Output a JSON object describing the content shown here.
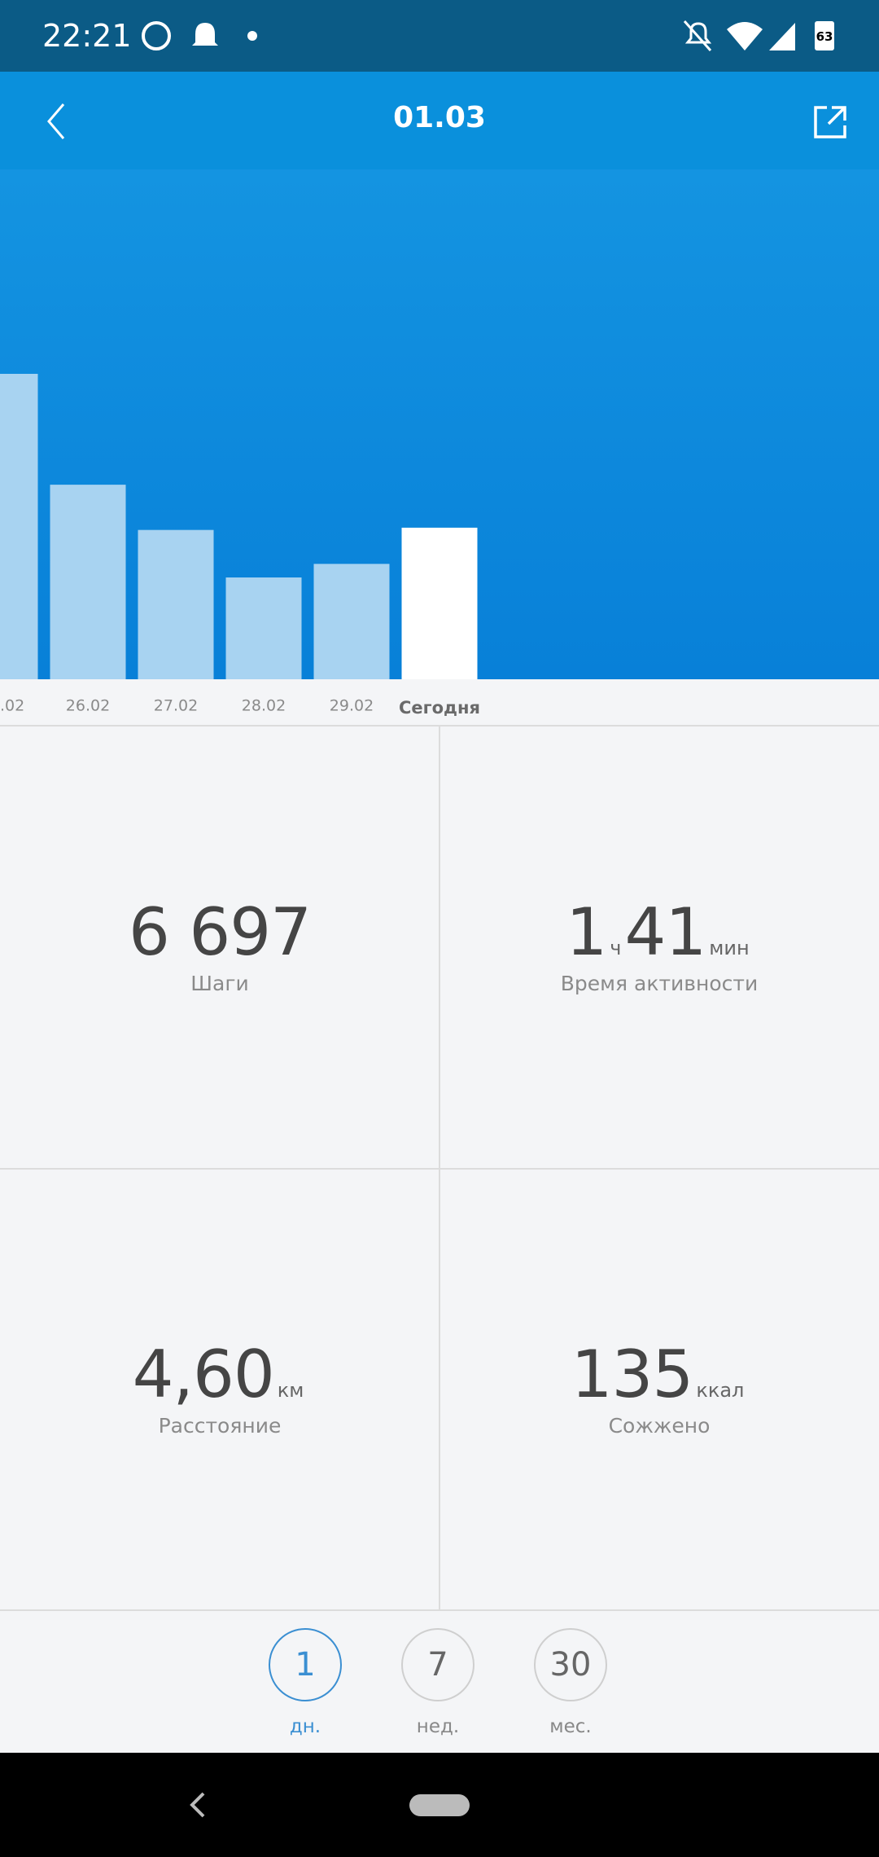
{
  "status_bar": {
    "time": "22:21",
    "battery": "63"
  },
  "app_bar": {
    "title": "01.03"
  },
  "chart_data": {
    "type": "bar",
    "categories": [
      ".02",
      "26.02",
      "27.02",
      "28.02",
      "29.02",
      "Сегодня"
    ],
    "values": [
      13500,
      8600,
      6600,
      4500,
      5100,
      6700
    ],
    "color": "#a8d3f1",
    "highlight_color": "#ffffff"
  },
  "stats": [
    {
      "value": "6 697",
      "label": "Шаги"
    },
    {
      "hours": "1",
      "hours_unit": "ч",
      "minutes": "41",
      "minutes_unit": "мин",
      "label": "Время активности"
    },
    {
      "value": "4,60",
      "unit": "км",
      "label": "Расстояние"
    },
    {
      "value": "135",
      "unit": "ккал",
      "label": "Сожжено"
    }
  ],
  "tabs": [
    {
      "number": "1",
      "label": "дн.",
      "active": true
    },
    {
      "number": "7",
      "label": "нед.",
      "active": false
    },
    {
      "number": "30",
      "label": "мес.",
      "active": false
    }
  ]
}
